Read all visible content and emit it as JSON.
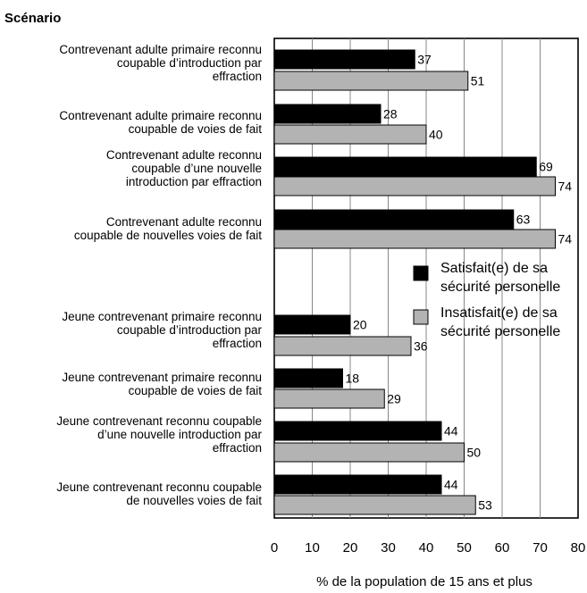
{
  "chart_data": {
    "type": "bar",
    "orientation": "horizontal",
    "title": "Scénario",
    "xlabel": "% de la population de 15 ans et plus",
    "ylabel": "",
    "xlim": [
      0,
      80
    ],
    "xticks": [
      0,
      10,
      20,
      30,
      40,
      50,
      60,
      70,
      80
    ],
    "grid": true,
    "legend_position": "right",
    "colors": {
      "satisfied": "#000000",
      "unsatisfied": "#b3b3b3"
    },
    "categories": [
      [
        "Contrevenant adulte primaire reconnu",
        "coupable d’introduction par",
        "effraction"
      ],
      [
        "Contrevenant adulte primaire reconnu",
        "coupable de voies de fait"
      ],
      [
        "Contrevenant adulte reconnu",
        "coupable d’une nouvelle",
        "introduction par effraction"
      ],
      [
        "Contrevenant adulte reconnu",
        "coupable de nouvelles voies de fait"
      ],
      [
        "Jeune contrevenant primaire reconnu",
        "coupable d’introduction par",
        "effraction"
      ],
      [
        "Jeune contrevenant primaire reconnu",
        "coupable de voies de fait"
      ],
      [
        "Jeune contrevenant reconnu coupable",
        "d’une nouvelle introduction par",
        "effraction"
      ],
      [
        "Jeune contrevenant reconnu coupable",
        "de nouvelles voies de fait"
      ]
    ],
    "series": [
      {
        "name": [
          "Satisfait(e) de sa",
          "sécurité personelle"
        ],
        "values": [
          37,
          28,
          69,
          63,
          20,
          18,
          44,
          44
        ]
      },
      {
        "name": [
          "Insatisfait(e) de sa",
          "sécurité personelle"
        ],
        "values": [
          51,
          40,
          74,
          74,
          36,
          29,
          50,
          53
        ]
      }
    ]
  }
}
